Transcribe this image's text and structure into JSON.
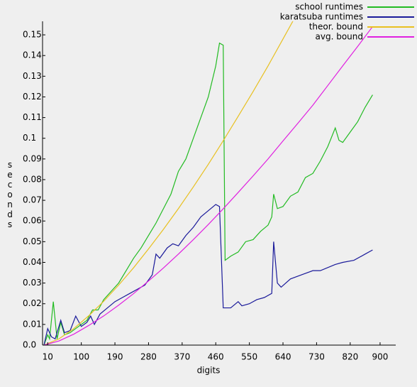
{
  "chart_data": {
    "type": "line",
    "x_label": "digits",
    "y_label": "seconds",
    "xlim": [
      0,
      940
    ],
    "ylim": [
      0,
      0.156
    ],
    "xticks": [
      10,
      100,
      190,
      280,
      370,
      460,
      550,
      640,
      730,
      820,
      900
    ],
    "yticks": [
      {
        "value": 0,
        "label": "0.0"
      },
      0.01,
      0.02,
      0.03,
      0.04,
      0.05,
      0.06,
      0.07,
      0.08,
      0.09,
      0.1,
      0.11,
      0.12,
      0.13,
      0.14,
      0.15
    ],
    "grid": false,
    "legend": "top-right",
    "series": [
      {
        "name": "school runtimes",
        "color": "#22bb22",
        "x": [
          0,
          10,
          15,
          25,
          35,
          45,
          55,
          70,
          85,
          100,
          115,
          130,
          145,
          160,
          180,
          200,
          220,
          240,
          260,
          280,
          300,
          320,
          340,
          360,
          380,
          400,
          420,
          440,
          460,
          470,
          480,
          485,
          500,
          520,
          540,
          560,
          580,
          600,
          610,
          615,
          625,
          640,
          660,
          680,
          700,
          720,
          740,
          760,
          780,
          790,
          800,
          820,
          840,
          860,
          880
        ],
        "values": [
          0.0,
          0.005,
          0.003,
          0.021,
          0.003,
          0.011,
          0.005,
          0.006,
          0.008,
          0.01,
          0.012,
          0.017,
          0.017,
          0.022,
          0.026,
          0.03,
          0.036,
          0.042,
          0.047,
          0.053,
          0.059,
          0.066,
          0.073,
          0.084,
          0.09,
          0.1,
          0.11,
          0.12,
          0.135,
          0.146,
          0.145,
          0.041,
          0.043,
          0.045,
          0.05,
          0.051,
          0.055,
          0.058,
          0.062,
          0.073,
          0.066,
          0.067,
          0.072,
          0.074,
          0.081,
          0.083,
          0.089,
          0.096,
          0.105,
          0.099,
          0.098,
          0.103,
          0.108,
          0.115,
          0.121
        ]
      },
      {
        "name": "karatsuba runtimes",
        "color": "#1a1a9a",
        "x": [
          0,
          10,
          20,
          30,
          45,
          55,
          70,
          85,
          100,
          115,
          125,
          135,
          150,
          170,
          190,
          210,
          230,
          250,
          270,
          290,
          300,
          310,
          330,
          345,
          360,
          380,
          400,
          420,
          440,
          460,
          470,
          480,
          500,
          520,
          530,
          550,
          570,
          590,
          610,
          615,
          625,
          635,
          660,
          690,
          720,
          740,
          780,
          800,
          830,
          860,
          880
        ],
        "values": [
          0.0,
          0.008,
          0.004,
          0.003,
          0.012,
          0.006,
          0.007,
          0.014,
          0.009,
          0.011,
          0.014,
          0.01,
          0.015,
          0.018,
          0.021,
          0.023,
          0.025,
          0.027,
          0.029,
          0.034,
          0.044,
          0.042,
          0.047,
          0.049,
          0.048,
          0.053,
          0.057,
          0.062,
          0.065,
          0.068,
          0.067,
          0.018,
          0.018,
          0.021,
          0.019,
          0.02,
          0.022,
          0.023,
          0.025,
          0.05,
          0.03,
          0.028,
          0.032,
          0.034,
          0.036,
          0.036,
          0.039,
          0.04,
          0.041,
          0.044,
          0.046
        ]
      },
      {
        "name": "theor. bound",
        "color": "#e8c020",
        "x": [
          0,
          40,
          80,
          120,
          160,
          200,
          240,
          280,
          320,
          360,
          400,
          440,
          480,
          520,
          560,
          600,
          640,
          680
        ],
        "values": [
          0,
          0.003,
          0.008,
          0.0142,
          0.0212,
          0.029,
          0.0374,
          0.0465,
          0.056,
          0.066,
          0.0765,
          0.0874,
          0.0988,
          0.1106,
          0.1226,
          0.135,
          0.148,
          0.161
        ]
      },
      {
        "name": "avg. bound",
        "color": "#e020e0",
        "x": [
          0,
          40,
          80,
          120,
          160,
          200,
          240,
          280,
          320,
          360,
          400,
          440,
          480,
          520,
          560,
          600,
          640,
          680,
          720,
          760,
          800,
          840,
          880
        ],
        "values": [
          0,
          0.002,
          0.0053,
          0.0095,
          0.0141,
          0.0193,
          0.0249,
          0.031,
          0.0373,
          0.044,
          0.051,
          0.0583,
          0.0659,
          0.0738,
          0.0818,
          0.09,
          0.0987,
          0.1073,
          0.116,
          0.1255,
          0.135,
          0.1444,
          0.154
        ]
      }
    ]
  }
}
